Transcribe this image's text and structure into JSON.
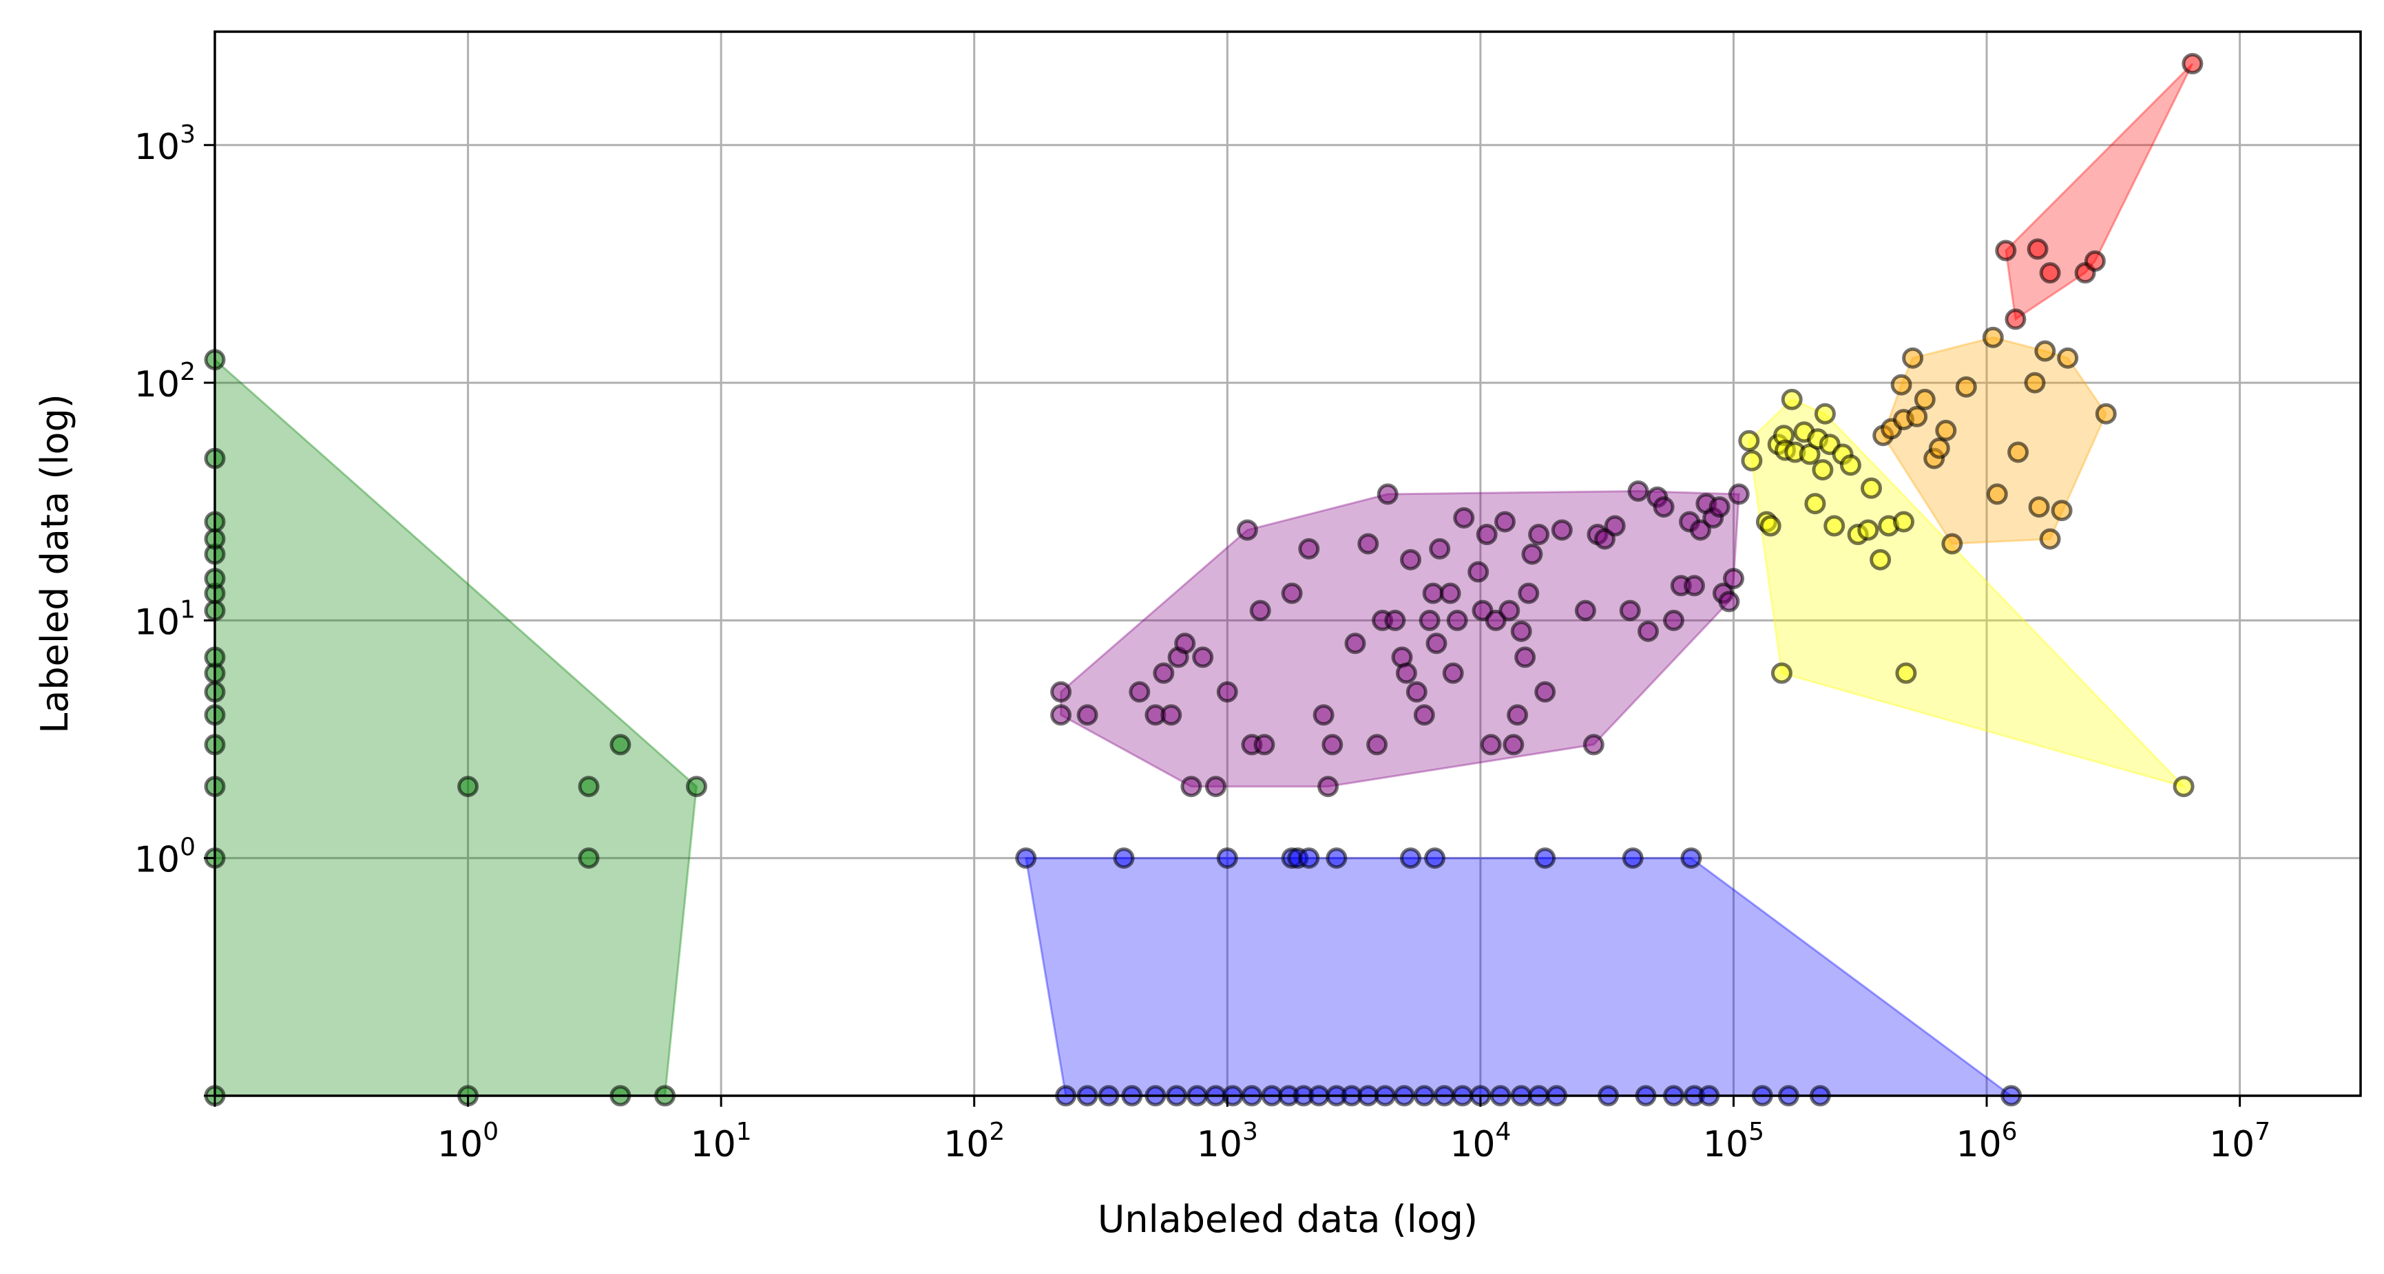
{
  "chart_data": {
    "type": "scatter",
    "title": "",
    "xlabel": "Unlabeled data (log)",
    "ylabel": "Labeled data (log)",
    "xscale": "symlog",
    "yscale": "symlog",
    "xlim": [
      0,
      30000000
    ],
    "ylim": [
      0,
      3000
    ],
    "grid": true,
    "x_ticks": [
      {
        "value": 1,
        "base": "10",
        "exp": "0"
      },
      {
        "value": 10,
        "base": "10",
        "exp": "1"
      },
      {
        "value": 100,
        "base": "10",
        "exp": "2"
      },
      {
        "value": 1000,
        "base": "10",
        "exp": "3"
      },
      {
        "value": 10000,
        "base": "10",
        "exp": "4"
      },
      {
        "value": 100000,
        "base": "10",
        "exp": "5"
      },
      {
        "value": 1000000,
        "base": "10",
        "exp": "6"
      },
      {
        "value": 10000000,
        "base": "10",
        "exp": "7"
      }
    ],
    "y_ticks": [
      {
        "value": 1,
        "base": "10",
        "exp": "0"
      },
      {
        "value": 10,
        "base": "10",
        "exp": "1"
      },
      {
        "value": 100,
        "base": "10",
        "exp": "2"
      },
      {
        "value": 1000,
        "base": "10",
        "exp": "3"
      }
    ],
    "series": [
      {
        "color": "#008000",
        "points": [
          [
            0,
            0
          ],
          [
            0,
            1
          ],
          [
            0,
            2
          ],
          [
            0,
            3
          ],
          [
            0,
            4
          ],
          [
            0,
            5
          ],
          [
            0,
            6
          ],
          [
            0,
            7
          ],
          [
            0,
            11
          ],
          [
            0,
            13
          ],
          [
            0,
            15
          ],
          [
            0,
            19
          ],
          [
            0,
            22
          ],
          [
            0,
            26
          ],
          [
            0,
            48
          ],
          [
            0,
            125
          ],
          [
            1,
            0
          ],
          [
            1,
            2
          ],
          [
            3,
            1
          ],
          [
            3,
            2
          ],
          [
            4,
            0
          ],
          [
            4,
            3
          ],
          [
            6,
            0
          ],
          [
            8,
            2
          ]
        ]
      },
      {
        "color": "#0000ff",
        "points": [
          [
            160,
            1
          ],
          [
            390,
            1
          ],
          [
            1000,
            1
          ],
          [
            1800,
            1
          ],
          [
            1900,
            1
          ],
          [
            2100,
            1
          ],
          [
            2700,
            1
          ],
          [
            5300,
            1
          ],
          [
            6600,
            1
          ],
          [
            18000,
            1
          ],
          [
            40000,
            1
          ],
          [
            68000,
            1
          ],
          [
            230,
            0
          ],
          [
            280,
            0
          ],
          [
            340,
            0
          ],
          [
            420,
            0
          ],
          [
            520,
            0
          ],
          [
            630,
            0
          ],
          [
            760,
            0
          ],
          [
            900,
            0
          ],
          [
            1050,
            0
          ],
          [
            1250,
            0
          ],
          [
            1500,
            0
          ],
          [
            1750,
            0
          ],
          [
            2000,
            0
          ],
          [
            2300,
            0
          ],
          [
            2700,
            0
          ],
          [
            3100,
            0
          ],
          [
            3600,
            0
          ],
          [
            4200,
            0
          ],
          [
            5000,
            0
          ],
          [
            6000,
            0
          ],
          [
            7200,
            0
          ],
          [
            8500,
            0
          ],
          [
            10000,
            0
          ],
          [
            12000,
            0
          ],
          [
            14500,
            0
          ],
          [
            17000,
            0
          ],
          [
            20000,
            0
          ],
          [
            32000,
            0
          ],
          [
            45000,
            0
          ],
          [
            58000,
            0
          ],
          [
            70000,
            0
          ],
          [
            80000,
            0
          ],
          [
            130000,
            0
          ],
          [
            165000,
            0
          ],
          [
            220000,
            0
          ],
          [
            1250000,
            0
          ]
        ]
      },
      {
        "color": "#800080",
        "points": [
          [
            220,
            5
          ],
          [
            220,
            4
          ],
          [
            280,
            4
          ],
          [
            450,
            5
          ],
          [
            520,
            4
          ],
          [
            560,
            6
          ],
          [
            600,
            4
          ],
          [
            640,
            7
          ],
          [
            680,
            8
          ],
          [
            720,
            2
          ],
          [
            800,
            7
          ],
          [
            900,
            2
          ],
          [
            1000,
            5
          ],
          [
            1200,
            24
          ],
          [
            1250,
            3
          ],
          [
            1350,
            11
          ],
          [
            1400,
            3
          ],
          [
            1800,
            13
          ],
          [
            2100,
            20
          ],
          [
            2400,
            4
          ],
          [
            2500,
            2
          ],
          [
            2600,
            3
          ],
          [
            3200,
            8
          ],
          [
            3600,
            21
          ],
          [
            3900,
            3
          ],
          [
            4100,
            10
          ],
          [
            4300,
            34
          ],
          [
            4600,
            10
          ],
          [
            4900,
            7
          ],
          [
            5100,
            6
          ],
          [
            5300,
            18
          ],
          [
            5600,
            5
          ],
          [
            6000,
            4
          ],
          [
            6300,
            10
          ],
          [
            6500,
            13
          ],
          [
            6700,
            8
          ],
          [
            6900,
            20
          ],
          [
            7600,
            13
          ],
          [
            7800,
            6
          ],
          [
            8100,
            10
          ],
          [
            8600,
            27
          ],
          [
            9800,
            16
          ],
          [
            10200,
            11
          ],
          [
            10600,
            23
          ],
          [
            11000,
            3
          ],
          [
            11500,
            10
          ],
          [
            12500,
            26
          ],
          [
            13000,
            11
          ],
          [
            13500,
            3
          ],
          [
            14000,
            4
          ],
          [
            14500,
            9
          ],
          [
            15000,
            7
          ],
          [
            15500,
            13
          ],
          [
            16000,
            19
          ],
          [
            17000,
            23
          ],
          [
            18000,
            5
          ],
          [
            21000,
            24
          ],
          [
            26000,
            11
          ],
          [
            28000,
            3
          ],
          [
            29000,
            23
          ],
          [
            31000,
            22
          ],
          [
            34000,
            25
          ],
          [
            39000,
            11
          ],
          [
            42000,
            35
          ],
          [
            46000,
            9
          ],
          [
            50000,
            33
          ],
          [
            53000,
            30
          ],
          [
            58000,
            10
          ],
          [
            62000,
            14
          ],
          [
            67000,
            26
          ],
          [
            70000,
            14
          ],
          [
            74000,
            24
          ],
          [
            78000,
            31
          ],
          [
            83000,
            27
          ],
          [
            88000,
            30
          ],
          [
            91000,
            13
          ],
          [
            96000,
            12
          ],
          [
            100000,
            15
          ],
          [
            105000,
            34
          ]
        ]
      },
      {
        "color": "#ffff00",
        "points": [
          [
            115000,
            57
          ],
          [
            118000,
            47
          ],
          [
            135000,
            26
          ],
          [
            140000,
            25
          ],
          [
            150000,
            55
          ],
          [
            155000,
            6
          ],
          [
            158000,
            60
          ],
          [
            160000,
            52
          ],
          [
            170000,
            85
          ],
          [
            175000,
            51
          ],
          [
            190000,
            62
          ],
          [
            200000,
            50
          ],
          [
            210000,
            31
          ],
          [
            215000,
            58
          ],
          [
            225000,
            43
          ],
          [
            230000,
            74
          ],
          [
            240000,
            55
          ],
          [
            250000,
            25
          ],
          [
            270000,
            50
          ],
          [
            290000,
            45
          ],
          [
            310000,
            23
          ],
          [
            340000,
            24
          ],
          [
            350000,
            36
          ],
          [
            380000,
            18
          ],
          [
            410000,
            25
          ],
          [
            470000,
            26
          ],
          [
            480000,
            6
          ],
          [
            6000000,
            2
          ]
        ]
      },
      {
        "color": "#ffa500",
        "points": [
          [
            390000,
            60
          ],
          [
            420000,
            64
          ],
          [
            460000,
            98
          ],
          [
            470000,
            70
          ],
          [
            510000,
            127
          ],
          [
            530000,
            72
          ],
          [
            570000,
            85
          ],
          [
            620000,
            48
          ],
          [
            650000,
            53
          ],
          [
            690000,
            63
          ],
          [
            730000,
            21
          ],
          [
            830000,
            96
          ],
          [
            1060000,
            155
          ],
          [
            1100000,
            34
          ],
          [
            1330000,
            51
          ],
          [
            1550000,
            100
          ],
          [
            1610000,
            30
          ],
          [
            1700000,
            136
          ],
          [
            1780000,
            22
          ],
          [
            1980000,
            29
          ],
          [
            2090000,
            127
          ],
          [
            2960000,
            74
          ]
        ]
      },
      {
        "color": "#ff0000",
        "points": [
          [
            1190000,
            360
          ],
          [
            1300000,
            185
          ],
          [
            1590000,
            365
          ],
          [
            1780000,
            290
          ],
          [
            2450000,
            290
          ],
          [
            2680000,
            325
          ],
          [
            6500000,
            2200
          ]
        ]
      }
    ]
  }
}
